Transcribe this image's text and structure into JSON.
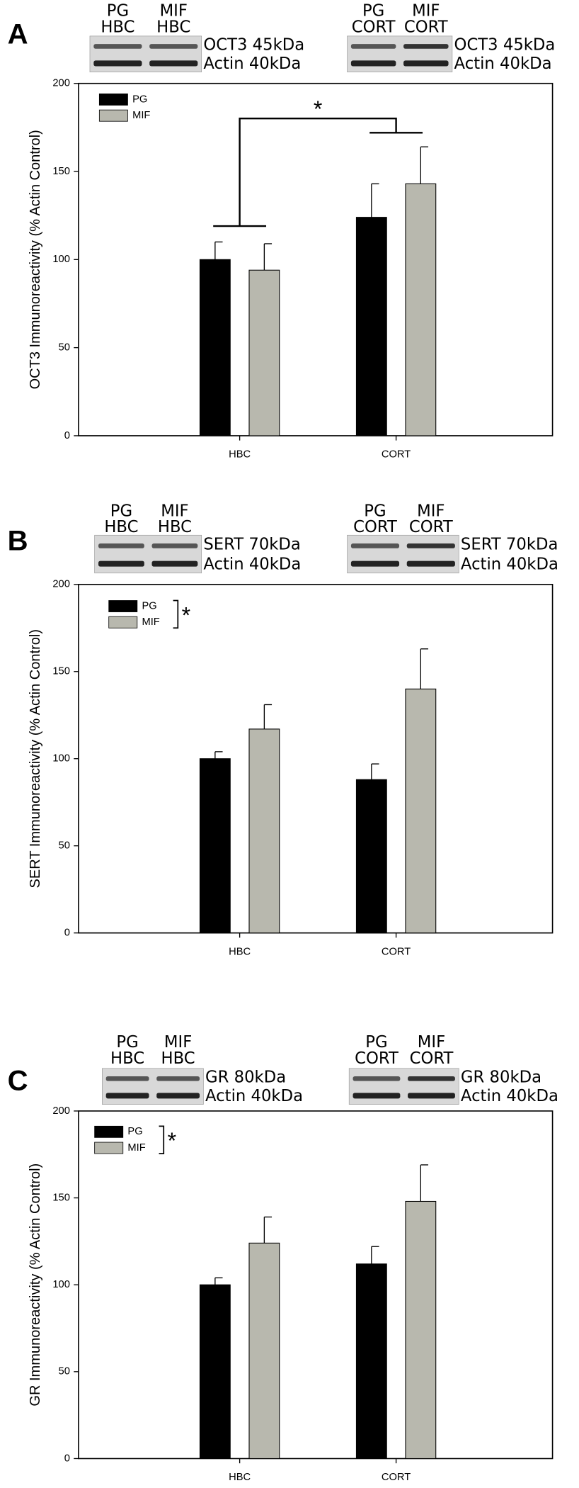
{
  "chart_data": [
    {
      "type": "bar",
      "panel": "A",
      "ylabel": "OCT3 Immunoreactivity (% Actin Control)",
      "categories": [
        "HBC",
        "CORT"
      ],
      "series": [
        {
          "name": "PG",
          "color": "#000000",
          "values": [
            100,
            124
          ],
          "errors": [
            10,
            19
          ]
        },
        {
          "name": "MIF",
          "color": "#b8b8ae",
          "values": [
            94,
            143
          ],
          "errors": [
            15,
            21
          ]
        }
      ],
      "ylim": [
        0,
        200
      ],
      "yticks": [
        0,
        50,
        100,
        150,
        200
      ],
      "blots": [
        {
          "groups": [
            [
              "PG",
              "HBC"
            ],
            [
              "MIF",
              "HBC"
            ]
          ],
          "bands": [
            "OCT3 45kDa",
            "Actin 40kDa"
          ]
        },
        {
          "groups": [
            [
              "PG",
              "CORT"
            ],
            [
              "MIF",
              "CORT"
            ]
          ],
          "bands": [
            "OCT3 45kDa",
            "Actin 40kDa"
          ]
        }
      ],
      "significance": "*"
    },
    {
      "type": "bar",
      "panel": "B",
      "ylabel": "SERT Immunoreactivity (% Actin Control)",
      "categories": [
        "HBC",
        "CORT"
      ],
      "series": [
        {
          "name": "PG",
          "color": "#000000",
          "values": [
            100,
            88
          ],
          "errors": [
            4,
            9
          ]
        },
        {
          "name": "MIF",
          "color": "#b8b8ae",
          "values": [
            117,
            140
          ],
          "errors": [
            14,
            23
          ]
        }
      ],
      "ylim": [
        0,
        200
      ],
      "yticks": [
        0,
        50,
        100,
        150,
        200
      ],
      "blots": [
        {
          "groups": [
            [
              "PG",
              "HBC"
            ],
            [
              "MIF",
              "HBC"
            ]
          ],
          "bands": [
            "SERT 70kDa",
            "Actin 40kDa"
          ]
        },
        {
          "groups": [
            [
              "PG",
              "CORT"
            ],
            [
              "MIF",
              "CORT"
            ]
          ],
          "bands": [
            "SERT 70kDa",
            "Actin 40kDa"
          ]
        }
      ],
      "significance": "*"
    },
    {
      "type": "bar",
      "panel": "C",
      "ylabel": "GR Immunoreactivity (% Actin Control)",
      "categories": [
        "HBC",
        "CORT"
      ],
      "series": [
        {
          "name": "PG",
          "color": "#000000",
          "values": [
            100,
            112
          ],
          "errors": [
            4,
            10
          ]
        },
        {
          "name": "MIF",
          "color": "#b8b8ae",
          "values": [
            124,
            148
          ],
          "errors": [
            15,
            21
          ]
        }
      ],
      "ylim": [
        0,
        200
      ],
      "yticks": [
        0,
        50,
        100,
        150,
        200
      ],
      "blots": [
        {
          "groups": [
            [
              "PG",
              "HBC"
            ],
            [
              "MIF",
              "HBC"
            ]
          ],
          "bands": [
            "GR 80kDa",
            "Actin 40kDa"
          ]
        },
        {
          "groups": [
            [
              "PG",
              "CORT"
            ],
            [
              "MIF",
              "CORT"
            ]
          ],
          "bands": [
            "GR 80kDa",
            "Actin 40kDa"
          ]
        }
      ],
      "significance": "*"
    }
  ]
}
